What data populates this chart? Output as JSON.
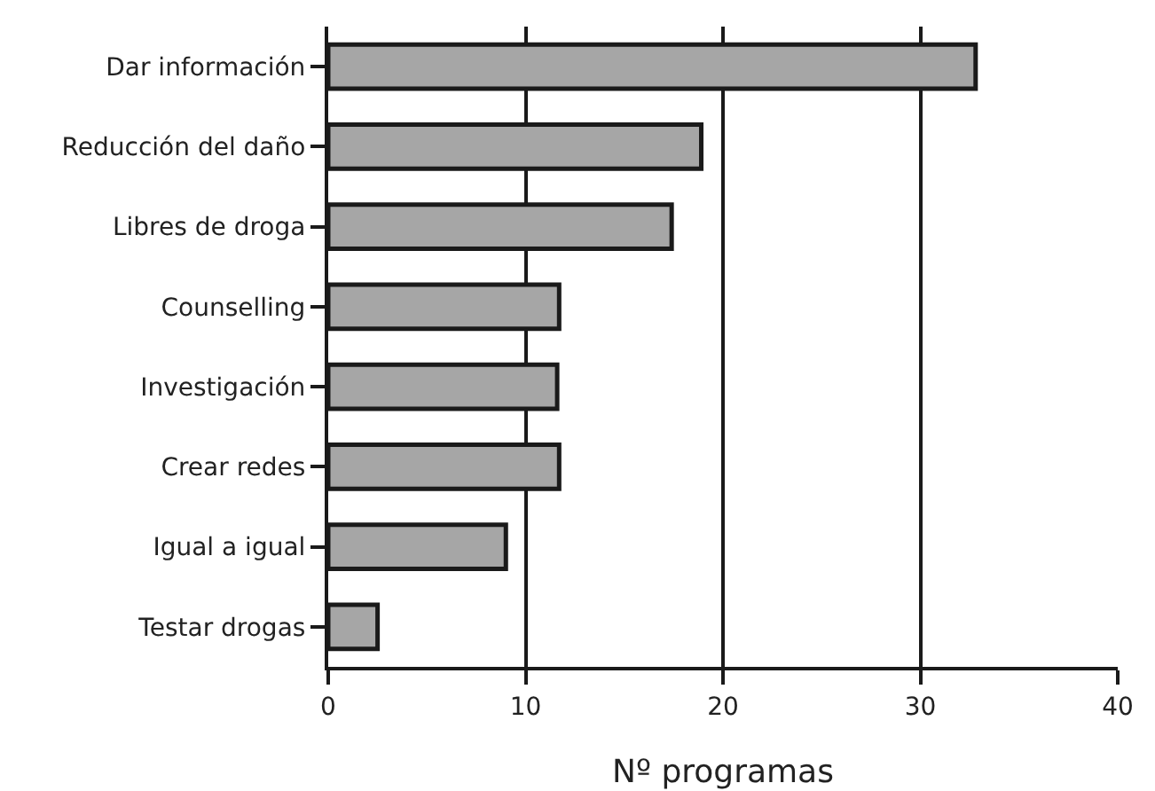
{
  "chart_data": {
    "type": "bar",
    "orientation": "horizontal",
    "xlabel": "Nº programas",
    "categories": [
      "Dar información",
      "Reducción del daño",
      "Libres de droga",
      "Counselling",
      "Investigación",
      "Crear redes",
      "Igual a igual",
      "Testar drogas"
    ],
    "values": [
      32.8,
      18.9,
      17.4,
      11.7,
      11.6,
      11.7,
      9.0,
      2.5
    ],
    "color": "#a6a6a6",
    "xlim": [
      0,
      40
    ],
    "xticks": [
      0,
      10,
      20,
      30,
      40
    ],
    "grid": "x",
    "legend": false
  }
}
